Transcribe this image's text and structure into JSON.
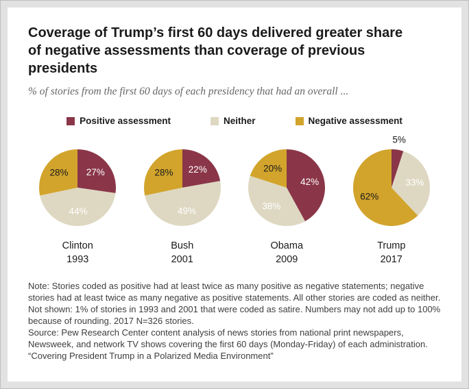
{
  "chart_data": {
    "type": "pie",
    "title": "Coverage of Trump’s first 60 days delivered greater share of negative assessments than coverage of previous presidents",
    "subtitle": "% of stories from the first 60 days of each presidency that had an overall ...",
    "legend": [
      {
        "key": "positive",
        "label": "Positive assessment",
        "color": "#8a3648",
        "label_color": "#ffffff"
      },
      {
        "key": "neither",
        "label": "Neither",
        "color": "#ded8c2",
        "label_color": "#ffffff"
      },
      {
        "key": "negative",
        "label": "Negative assessment",
        "color": "#d2a42c",
        "label_color": "#1a1a1a"
      }
    ],
    "slice_order": [
      "Positive assessment",
      "Neither",
      "Negative assessment"
    ],
    "outside_label_color": "#1a1a1a",
    "charts": [
      {
        "president": "Clinton",
        "year": "1993",
        "values": [
          27,
          44,
          28
        ],
        "labels": [
          "27%",
          "44%",
          "28%"
        ],
        "label_outside": [
          false,
          false,
          false
        ]
      },
      {
        "president": "Bush",
        "year": "2001",
        "values": [
          22,
          49,
          28
        ],
        "labels": [
          "22%",
          "49%",
          "28%"
        ],
        "label_outside": [
          false,
          false,
          false
        ]
      },
      {
        "president": "Obama",
        "year": "2009",
        "values": [
          42,
          38,
          20
        ],
        "labels": [
          "42%",
          "38%",
          "20%"
        ],
        "label_outside": [
          false,
          false,
          false
        ]
      },
      {
        "president": "Trump",
        "year": "2017",
        "values": [
          5,
          33,
          62
        ],
        "labels": [
          "5%",
          "33%",
          "62%"
        ],
        "label_outside": [
          true,
          false,
          false
        ]
      }
    ]
  },
  "footer": {
    "note": "Note: Stories coded as positive had at least twice as many positive as negative statements; negative stories had at least twice as many negative as positive statements. All other stories are coded as neither. Not shown: 1% of stories in 1993 and 2001 that were coded as satire. Numbers may not add up to 100% because of rounding. 2017 N=326 stories.",
    "source": "Source: Pew Research Center content analysis of news stories from national print newspapers, Newsweek, and network TV shows covering the first 60 days (Monday-Friday) of each administration.",
    "quote": "“Covering President Trump in a Polarized Media Environment”"
  }
}
